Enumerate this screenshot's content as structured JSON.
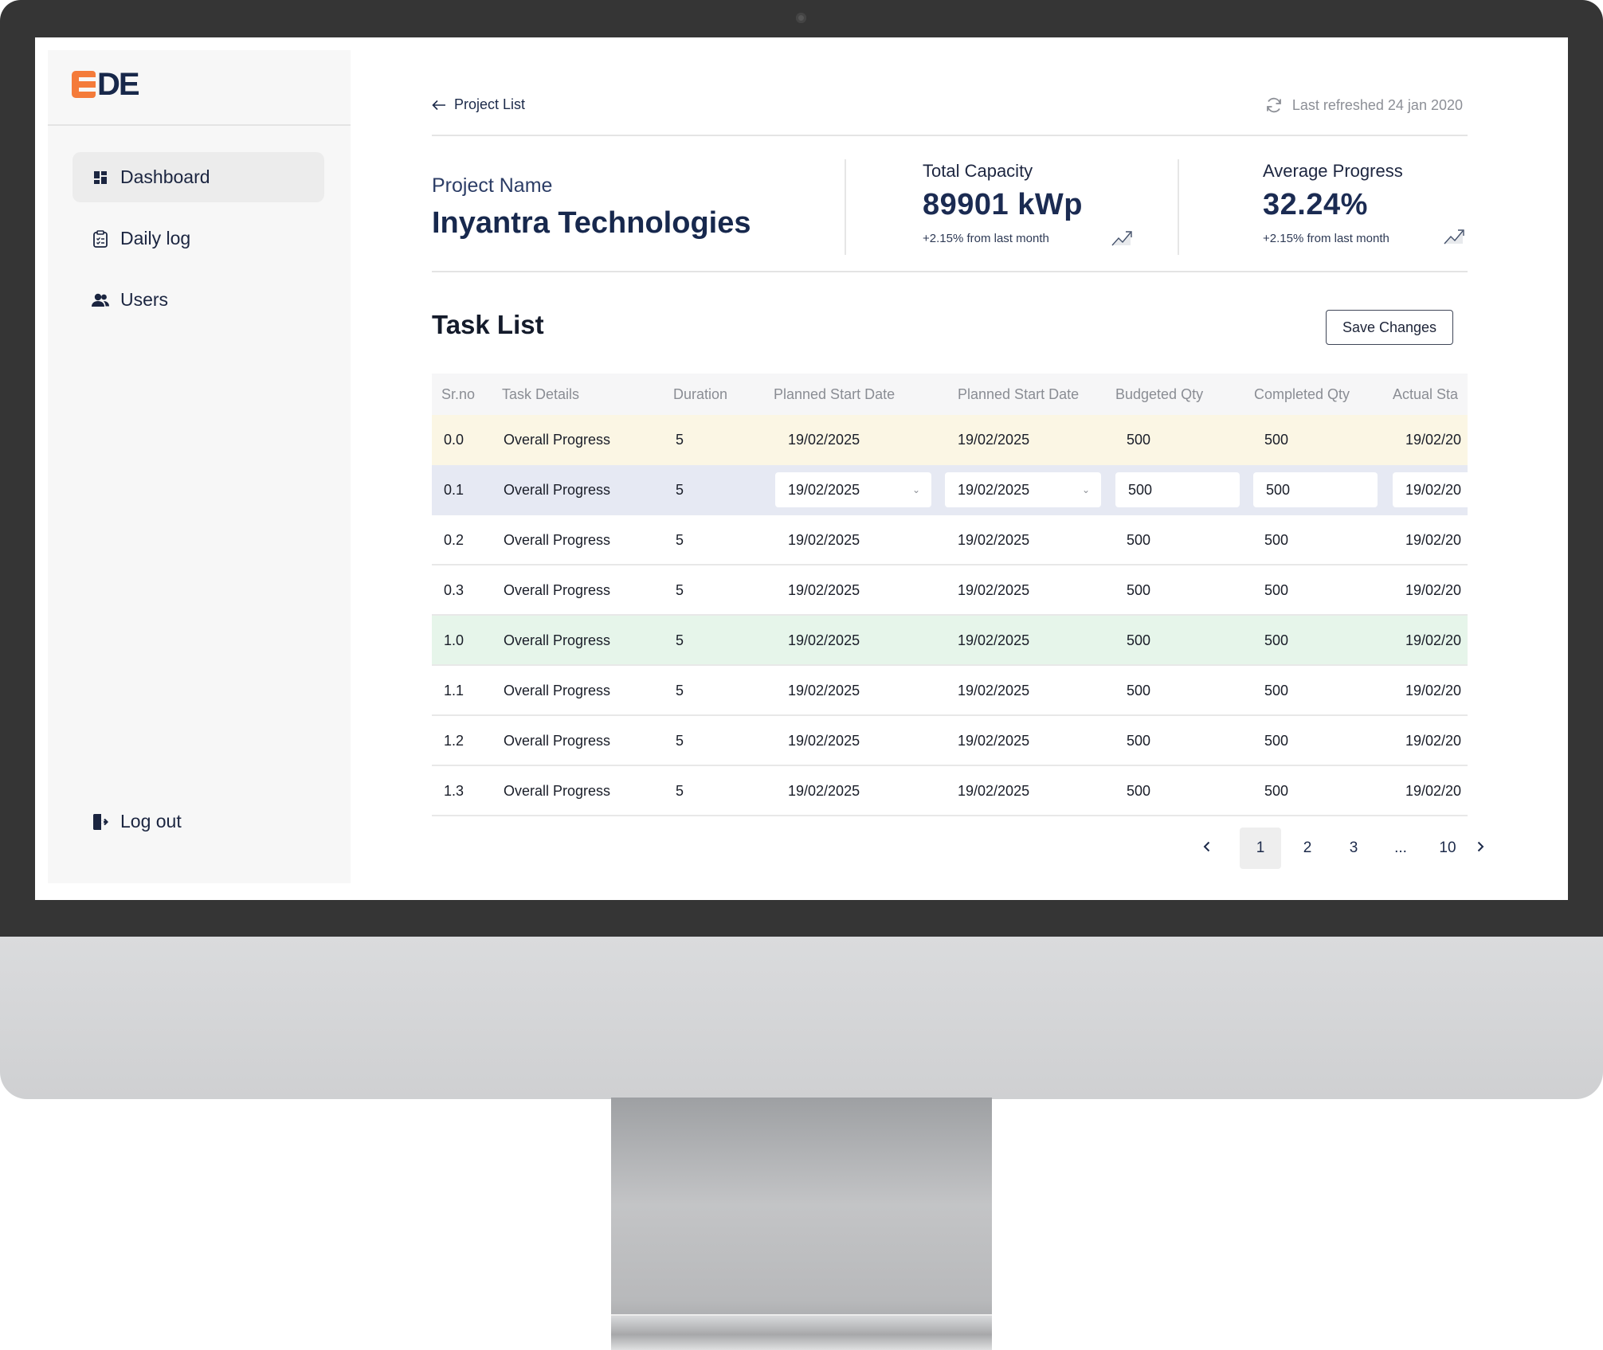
{
  "brand": {
    "logo_text": "DE",
    "logo_full": "EDE",
    "accent": "#f47b3a",
    "navy": "#18284a"
  },
  "sidebar": {
    "items": [
      {
        "label": "Dashboard",
        "icon": "dashboard-icon",
        "active": true
      },
      {
        "label": "Daily log",
        "icon": "clipboard-icon",
        "active": false
      },
      {
        "label": "Users",
        "icon": "users-icon",
        "active": false
      }
    ],
    "logout": {
      "label": "Log out",
      "icon": "logout-icon"
    }
  },
  "header": {
    "back_label": "Project List",
    "refreshed_label": "Last refreshed 24 jan 2020"
  },
  "project": {
    "label": "Project Name",
    "name": "Inyantra Technologies"
  },
  "stats": [
    {
      "label": "Total Capacity",
      "value": "89901 kWp",
      "delta": "+2.15% from last month"
    },
    {
      "label": "Average Progress",
      "value": "32.24%",
      "delta": "+2.15% from last month"
    }
  ],
  "tasks": {
    "title": "Task List",
    "save_label": "Save Changes",
    "columns": [
      "Sr.no",
      "Task Details",
      "Duration",
      "Planned Start Date",
      "Planned Start Date",
      "Budgeted Qty",
      "Completed Qty",
      "Actual Sta"
    ],
    "rows": [
      {
        "srno": "0.0",
        "task": "Overall Progress",
        "duration": "5",
        "start1": "19/02/2025",
        "start2": "19/02/2025",
        "budgeted": "500",
        "completed": "500",
        "actual": "19/02/20",
        "style": "highlight-yellow"
      },
      {
        "srno": "0.1",
        "task": "Overall Progress",
        "duration": "5",
        "start1": "19/02/2025",
        "start2": "19/02/2025",
        "budgeted": "500",
        "completed": "500",
        "actual": "19/02/20",
        "style": "editing"
      },
      {
        "srno": "0.2",
        "task": "Overall Progress",
        "duration": "5",
        "start1": "19/02/2025",
        "start2": "19/02/2025",
        "budgeted": "500",
        "completed": "500",
        "actual": "19/02/20",
        "style": "normal"
      },
      {
        "srno": "0.3",
        "task": "Overall Progress",
        "duration": "5",
        "start1": "19/02/2025",
        "start2": "19/02/2025",
        "budgeted": "500",
        "completed": "500",
        "actual": "19/02/20",
        "style": "normal"
      },
      {
        "srno": "1.0",
        "task": "Overall Progress",
        "duration": "5",
        "start1": "19/02/2025",
        "start2": "19/02/2025",
        "budgeted": "500",
        "completed": "500",
        "actual": "19/02/20",
        "style": "highlight-green"
      },
      {
        "srno": "1.1",
        "task": "Overall Progress",
        "duration": "5",
        "start1": "19/02/2025",
        "start2": "19/02/2025",
        "budgeted": "500",
        "completed": "500",
        "actual": "19/02/20",
        "style": "normal"
      },
      {
        "srno": "1.2",
        "task": "Overall Progress",
        "duration": "5",
        "start1": "19/02/2025",
        "start2": "19/02/2025",
        "budgeted": "500",
        "completed": "500",
        "actual": "19/02/20",
        "style": "normal"
      },
      {
        "srno": "1.3",
        "task": "Overall Progress",
        "duration": "5",
        "start1": "19/02/2025",
        "start2": "19/02/2025",
        "budgeted": "500",
        "completed": "500",
        "actual": "19/02/20",
        "style": "normal"
      }
    ]
  },
  "pagination": {
    "pages": [
      "1",
      "2",
      "3",
      "...",
      "10"
    ],
    "current": "1",
    "prev_icon": "chevron-left-icon",
    "next_icon": "chevron-right-icon"
  }
}
